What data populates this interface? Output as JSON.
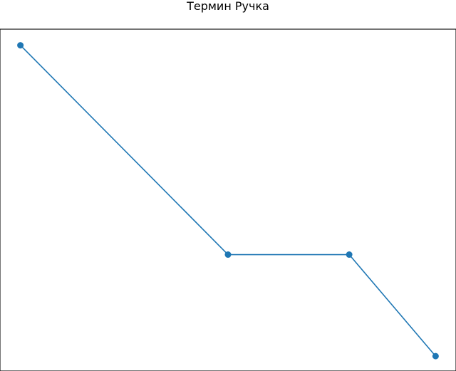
{
  "chart_data": {
    "type": "line",
    "title": "Термин Ручка",
    "xlabel": "",
    "ylabel": "",
    "x": [
      0,
      1.73,
      2.74,
      3.46
    ],
    "series": [
      {
        "values": [
          2.47,
          0.78,
          0.78,
          -0.04
        ],
        "color": "#1f77b4",
        "marker": "circle"
      }
    ],
    "xlim": [
      -0.17,
      3.63
    ],
    "ylim": [
      -0.16,
      2.6
    ],
    "grid": false,
    "legend": "none",
    "show_ticks": false
  }
}
